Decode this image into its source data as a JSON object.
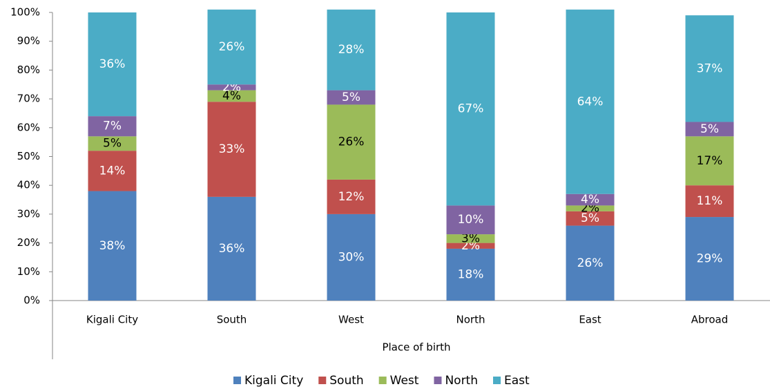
{
  "chart_data": {
    "type": "stacked_bar",
    "x_label": "Place of birth",
    "categories": [
      "Kigali City",
      "South",
      "West",
      "North",
      "East",
      "Abroad"
    ],
    "series": [
      {
        "name": "Kigali City",
        "color": "#4f81bd",
        "label_color": "#ffffff",
        "values": [
          38,
          36,
          30,
          18,
          26,
          29
        ],
        "value_labels": [
          "38%",
          "36%",
          "30%",
          "18%",
          "26%",
          "29%"
        ]
      },
      {
        "name": "South",
        "color": "#c0504d",
        "label_color": "#ffffff",
        "values": [
          14,
          33,
          12,
          2,
          5,
          11
        ],
        "value_labels": [
          "14%",
          "33%",
          "12%",
          "2%",
          "5%",
          "11%"
        ]
      },
      {
        "name": "West",
        "color": "#9bbb59",
        "label_color": "#000000",
        "values": [
          5,
          4,
          26,
          3,
          2,
          17
        ],
        "value_labels": [
          "5%",
          "4%",
          "26%",
          "3%",
          "2%",
          "17%"
        ]
      },
      {
        "name": "North",
        "color": "#8064a2",
        "label_color": "#ffffff",
        "values": [
          7,
          2,
          5,
          10,
          4,
          5
        ],
        "value_labels": [
          "7%",
          "2%",
          "5%",
          "10%",
          "4%",
          "5%"
        ]
      },
      {
        "name": "East",
        "color": "#4bacc6",
        "label_color": "#ffffff",
        "values": [
          36,
          26,
          28,
          67,
          64,
          37
        ],
        "value_labels": [
          "36%",
          "26%",
          "28%",
          "67%",
          "64%",
          "37%"
        ]
      }
    ],
    "ylim": [
      0,
      100
    ],
    "yticks": [
      {
        "value": 0,
        "label": "0%"
      },
      {
        "value": 10,
        "label": "10%"
      },
      {
        "value": 20,
        "label": "20%"
      },
      {
        "value": 30,
        "label": "30%"
      },
      {
        "value": 40,
        "label": "40%"
      },
      {
        "value": 50,
        "label": "50%"
      },
      {
        "value": 60,
        "label": "60%"
      },
      {
        "value": 70,
        "label": "70%"
      },
      {
        "value": 80,
        "label": "80%"
      },
      {
        "value": 90,
        "label": "90%"
      },
      {
        "value": 100,
        "label": "100%"
      }
    ],
    "grid": false,
    "legend": "bottom"
  }
}
